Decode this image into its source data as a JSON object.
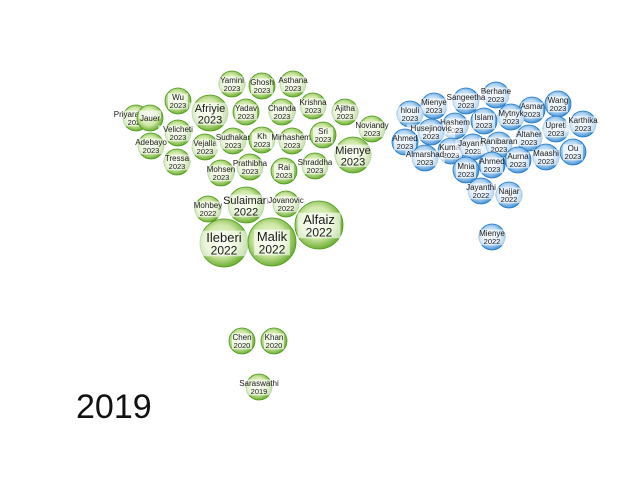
{
  "chart_data": {
    "type": "scatter",
    "year_label": "2019",
    "colors": {
      "green_light": "#bfe08e",
      "green_dark": "#4a9a16",
      "blue_light": "#cfe5f7",
      "blue_dark": "#1f78c8"
    },
    "clusters": [
      {
        "color": "green",
        "items": [
          {
            "name": "Yamini",
            "year": "2023",
            "size": 1
          },
          {
            "name": "Ghosh",
            "year": "2023",
            "size": 1
          },
          {
            "name": "Asthana",
            "year": "2023",
            "size": 1
          },
          {
            "name": "Wu",
            "year": "2023",
            "size": 1
          },
          {
            "name": "Priyaradhika",
            "year": "2023",
            "size": 1
          },
          {
            "name": "Jauer",
            "year": "",
            "size": 1
          },
          {
            "name": "Afriyie",
            "year": "2023",
            "size": 2
          },
          {
            "name": "Yadav",
            "year": "2023",
            "size": 1
          },
          {
            "name": "Chanda",
            "year": "2023",
            "size": 1
          },
          {
            "name": "Krishna",
            "year": "2023",
            "size": 1
          },
          {
            "name": "Ajitha",
            "year": "2023",
            "size": 1
          },
          {
            "name": "Velicheti",
            "year": "2023",
            "size": 1
          },
          {
            "name": "Adebayo",
            "year": "2023",
            "size": 1
          },
          {
            "name": "Vejalla",
            "year": "2023",
            "size": 1
          },
          {
            "name": "Sudhakar",
            "year": "2023",
            "size": 1
          },
          {
            "name": "Kh",
            "year": "2023",
            "size": 1
          },
          {
            "name": "Mirhashemi",
            "year": "2023",
            "size": 1
          },
          {
            "name": "Sri",
            "year": "2023",
            "size": 1
          },
          {
            "name": "Noviandy",
            "year": "2023",
            "size": 1
          },
          {
            "name": "Tressa",
            "year": "2023",
            "size": 1
          },
          {
            "name": "Prathibha",
            "year": "2023",
            "size": 1
          },
          {
            "name": "Mohsen",
            "year": "2023",
            "size": 1
          },
          {
            "name": "Rai",
            "year": "2023",
            "size": 1
          },
          {
            "name": "Shraddha",
            "year": "2023",
            "size": 1
          },
          {
            "name": "Mienye",
            "year": "2023",
            "size": 2
          },
          {
            "name": "Mohbey",
            "year": "2022",
            "size": 1
          },
          {
            "name": "Sulaiman",
            "year": "2022",
            "size": 2
          },
          {
            "name": "Jovanovic",
            "year": "2022",
            "size": 1
          },
          {
            "name": "Alfaiz",
            "year": "2022",
            "size": 3
          },
          {
            "name": "Ileberi",
            "year": "2022",
            "size": 3
          },
          {
            "name": "Malik",
            "year": "2022",
            "size": 3
          },
          {
            "name": "Chen",
            "year": "2020",
            "size": 1
          },
          {
            "name": "Khan",
            "year": "2020",
            "size": 1
          },
          {
            "name": "Saraswathi",
            "year": "2019",
            "size": 1
          }
        ]
      },
      {
        "color": "blue",
        "items": [
          {
            "name": "Berhane",
            "year": "2023",
            "size": 1
          },
          {
            "name": "Mienye",
            "year": "2023",
            "size": 1
          },
          {
            "name": "Sangeetha",
            "year": "2023",
            "size": 1
          },
          {
            "name": "Wang",
            "year": "2023",
            "size": 1
          },
          {
            "name": "Asmar",
            "year": "2023",
            "size": 1
          },
          {
            "name": "hlouli",
            "year": "2023",
            "size": 1
          },
          {
            "name": "Hashem",
            "year": "2023",
            "size": 1
          },
          {
            "name": "Islam",
            "year": "2023",
            "size": 1
          },
          {
            "name": "Mytnyk",
            "year": "2023",
            "size": 1
          },
          {
            "name": "Upreti",
            "year": "2023",
            "size": 1
          },
          {
            "name": "Karthika",
            "year": "2023",
            "size": 1
          },
          {
            "name": "Husejinovic",
            "year": "2023",
            "size": 1
          },
          {
            "name": "Altaher",
            "year": "2023",
            "size": 1
          },
          {
            "name": "Ahmed",
            "year": "2023",
            "size": 1
          },
          {
            "name": "Kumar",
            "year": "2023",
            "size": 1
          },
          {
            "name": "Jayanthi",
            "year": "2023",
            "size": 1
          },
          {
            "name": "Ranibaran",
            "year": "2023",
            "size": 1
          },
          {
            "name": "Ou",
            "year": "2023",
            "size": 1
          },
          {
            "name": "Almarshad",
            "year": "2023",
            "size": 1
          },
          {
            "name": "Maashi",
            "year": "2023",
            "size": 1
          },
          {
            "name": "Aurna",
            "year": "2023",
            "size": 1
          },
          {
            "name": "Mnia",
            "year": "2023",
            "size": 1
          },
          {
            "name": "Ahmed",
            "year": "2023",
            "size": 1
          },
          {
            "name": "Jayanthi",
            "year": "2022",
            "size": 1
          },
          {
            "name": "Najjar",
            "year": "2022",
            "size": 1
          },
          {
            "name": "Mienye",
            "year": "2022",
            "size": 1
          }
        ]
      }
    ]
  }
}
